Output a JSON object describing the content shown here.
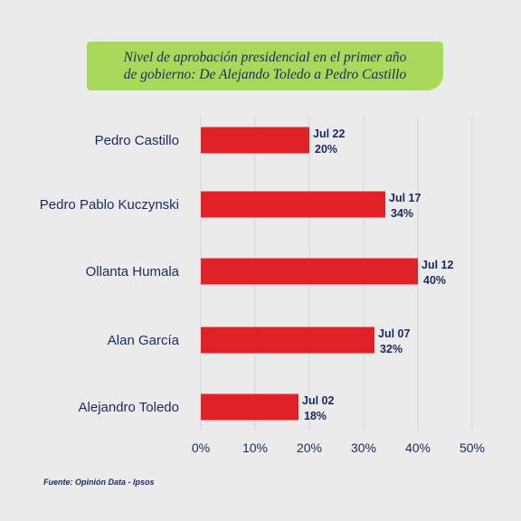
{
  "title_lines": [
    "Nivel de aprobación presidencial en el primer año",
    "de gobierno:  De Alejando Toledo a Pedro Castillo"
  ],
  "source": "Fuente: Opinión Data - Ipsos",
  "colors": {
    "bar": "#e02128",
    "text": "#1b2a5e",
    "title_bg": "#a8d95a",
    "background": "#ebebeb",
    "grid": "#d4d4d4"
  },
  "chart_data": {
    "type": "bar",
    "orientation": "horizontal",
    "categories": [
      "Pedro Castillo",
      "Pedro Pablo Kuczynski",
      "Ollanta Humala",
      "Alan García",
      "Alejandro Toledo"
    ],
    "values": [
      20,
      34,
      40,
      32,
      18
    ],
    "bar_labels": [
      {
        "date": "Jul 22",
        "value": "20%"
      },
      {
        "date": "Jul 17",
        "value": "34%"
      },
      {
        "date": "Jul 12",
        "value": "40%"
      },
      {
        "date": "Jul 07",
        "value": "32%"
      },
      {
        "date": "Jul 02",
        "value": "18%"
      }
    ],
    "xlim": [
      0,
      50
    ],
    "xticks": [
      0,
      10,
      20,
      30,
      40,
      50
    ],
    "xtick_labels": [
      "0%",
      "10%",
      "20%",
      "30%",
      "40%",
      "50%"
    ],
    "grid": true,
    "legend": "none"
  }
}
